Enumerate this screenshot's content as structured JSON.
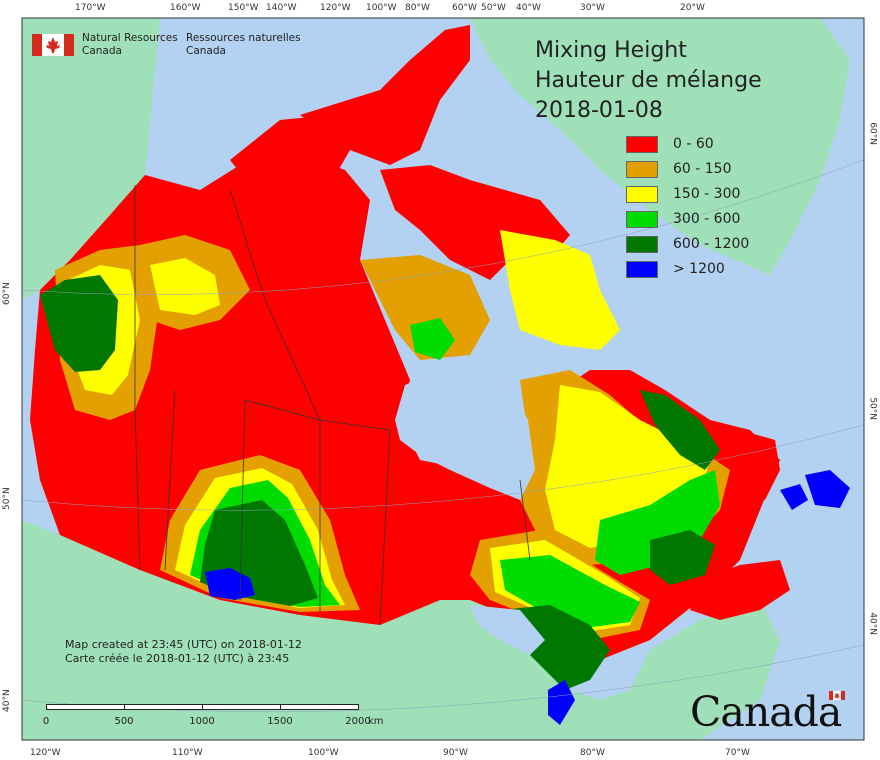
{
  "agency": {
    "name_en": "Natural Resources Canada",
    "name_fr": "Ressources naturelles Canada"
  },
  "title": {
    "line1": "Mixing Height",
    "line2": "Hauteur de mélange",
    "date": "2018-01-08"
  },
  "legend": [
    {
      "label": "0 - 60",
      "color": "#ff0000"
    },
    {
      "label": "60 - 150",
      "color": "#e3a000"
    },
    {
      "label": "150 - 300",
      "color": "#ffff00"
    },
    {
      "label": "300 - 600",
      "color": "#00dc00"
    },
    {
      "label": "600 - 1200",
      "color": "#007800"
    },
    {
      "label": "> 1200",
      "color": "#0000ff"
    }
  ],
  "credit": {
    "en": "Map created at 23:45 (UTC) on 2018-01-12",
    "fr": "Carte créée le 2018-01-12 (UTC) à 23:45"
  },
  "scale": {
    "labels": [
      "0",
      "500",
      "1000",
      "1500",
      "2000"
    ],
    "unit": "km"
  },
  "graticule": {
    "top": [
      "170°W",
      "160°W",
      "150°W",
      "140°W",
      "120°W",
      "100°W",
      "80°W",
      "60°W",
      "50°W",
      "40°W",
      "30°W",
      "20°W"
    ],
    "bottom": [
      "120°W",
      "110°W",
      "100°W",
      "90°W",
      "80°W",
      "70°W"
    ],
    "left": [
      "60°N",
      "50°N",
      "40°N"
    ],
    "right": [
      "60°N",
      "50°N",
      "40°N"
    ]
  },
  "wordmark": "Canada",
  "colors": {
    "ocean": "#b3d1f0",
    "land_other": "#9fe0b9",
    "borders": "#333333"
  }
}
